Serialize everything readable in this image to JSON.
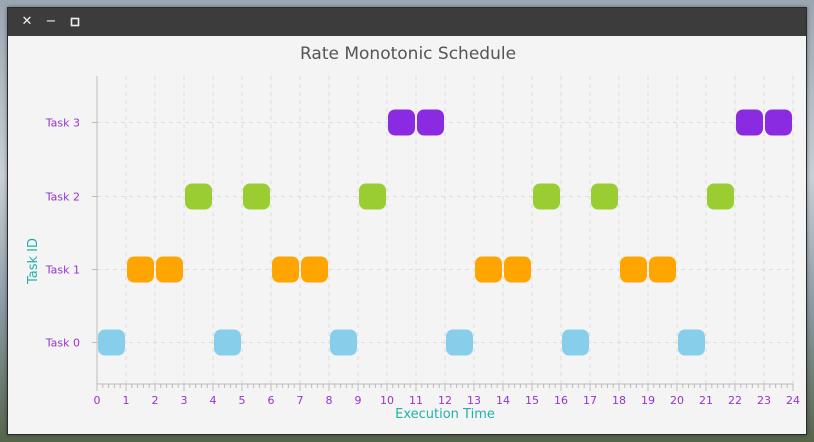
{
  "window": {
    "controls": [
      "close-icon",
      "minimize-icon",
      "maximize-icon"
    ]
  },
  "chart_data": {
    "type": "gantt",
    "title": "Rate Monotonic Schedule",
    "xlabel": "Execution Time",
    "ylabel": "Task ID",
    "xlim": [
      0,
      24
    ],
    "xticks": [
      0,
      1,
      2,
      3,
      4,
      5,
      6,
      7,
      8,
      9,
      10,
      11,
      12,
      13,
      14,
      15,
      16,
      17,
      18,
      19,
      20,
      21,
      22,
      23,
      24
    ],
    "categories": [
      "Task 0",
      "Task 1",
      "Task 2",
      "Task 3"
    ],
    "grid": true,
    "colors": {
      "title": "#555555",
      "axis_label": "#20b2aa",
      "tick_label": "#9932cc",
      "Task 0": "#87ceeb",
      "Task 1": "#ffa500",
      "Task 2": "#9acd32",
      "Task 3": "#8a2be2"
    },
    "series": [
      {
        "task": "Task 0",
        "starts": [
          0,
          4,
          8,
          12,
          16,
          20
        ]
      },
      {
        "task": "Task 1",
        "starts": [
          1,
          2,
          6,
          7,
          13,
          14,
          18,
          19
        ]
      },
      {
        "task": "Task 2",
        "starts": [
          3,
          5,
          9,
          15,
          17,
          21
        ]
      },
      {
        "task": "Task 3",
        "starts": [
          10,
          11,
          22,
          23
        ]
      }
    ],
    "block_duration": 1
  }
}
